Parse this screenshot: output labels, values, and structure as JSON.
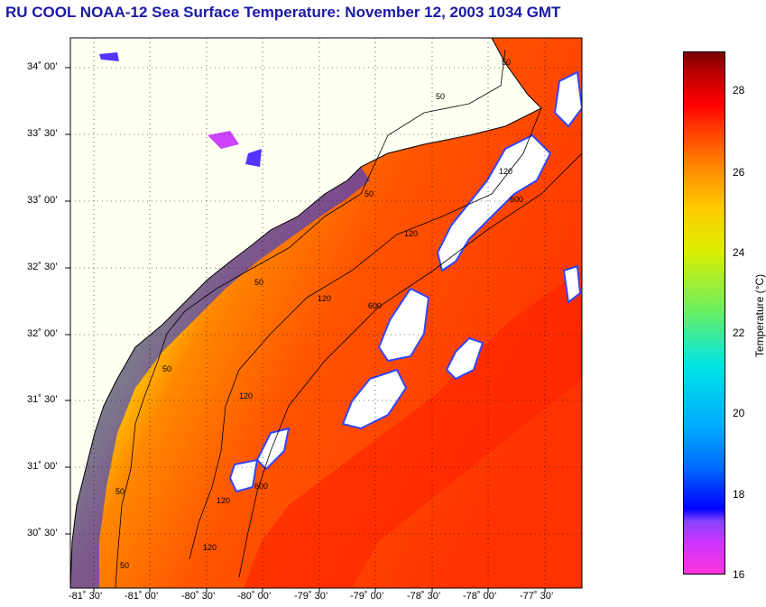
{
  "title": "RU COOL  NOAA-12  Sea Surface Temperature:  November 12, 2003 1034 GMT",
  "map": {
    "lat_labels": [
      "34˚ 00’",
      "33˚ 30’",
      "33˚ 00’",
      "32˚ 30’",
      "32˚ 00’",
      "31˚ 30’",
      "31˚ 00’",
      "30˚ 30’"
    ],
    "lon_labels": [
      "-81˚ 30’",
      "-81˚ 00’",
      "-80˚ 30’",
      "-80˚ 00’",
      "-79˚ 30’",
      "-79˚ 00’",
      "-78˚ 30’",
      "-78˚ 00’",
      "-77˚ 30’"
    ],
    "contour_labels": [
      "50",
      "50",
      "50",
      "50",
      "50",
      "50",
      "50",
      "120",
      "120",
      "120",
      "120",
      "120",
      "120",
      "600",
      "600",
      "600"
    ]
  },
  "colorbar": {
    "title": "Temperature (°C)",
    "ticks": [
      "28",
      "26",
      "24",
      "22",
      "20",
      "18",
      "16"
    ]
  },
  "colors": {
    "title": "#1a1aa6",
    "land": "#fffff2",
    "cloud": "#ffffff"
  }
}
